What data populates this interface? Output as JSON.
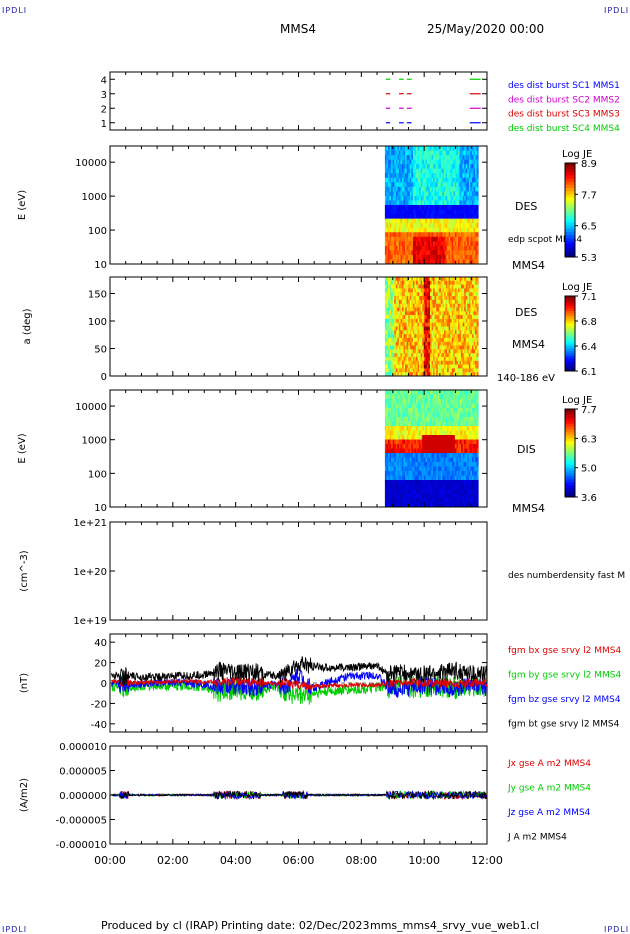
{
  "corner_label": "IPDLI",
  "header": {
    "spacecraft": "MMS4",
    "date": "25/May/2020 00:00"
  },
  "footer": {
    "produced": "Produced by cl (IRAP)",
    "printing": "Printing date: 02/Dec/2023",
    "file": "mms_mms4_srvy_vue_web1.cl"
  },
  "time_axis": {
    "ticks": [
      "00:00",
      "02:00",
      "04:00",
      "06:00",
      "08:00",
      "10:00",
      "12:00"
    ]
  },
  "colors": {
    "mms1": "#0000ff",
    "mms2": "#d000d0",
    "mms3": "#dd0000",
    "mms4": "#00cc00",
    "bx": "#dd0000",
    "by": "#00cc00",
    "bz": "#0000ff",
    "bt": "#000000"
  },
  "chart_data": [
    {
      "type": "scatter",
      "panel": "burst-availability",
      "yticks": [
        "4",
        "3",
        "2",
        "1"
      ],
      "ylim": [
        0.5,
        4.5
      ],
      "series": [
        {
          "name": "des dist burst SC1 MMS1",
          "y": 1,
          "color": "#0000ff",
          "intervals_h": [
            [
              8.78,
              8.92
            ],
            [
              9.2,
              9.35
            ],
            [
              9.45,
              9.6
            ],
            [
              11.45,
              11.8
            ]
          ]
        },
        {
          "name": "des dist burst SC2 MMS2",
          "y": 2,
          "color": "#d000d0",
          "intervals_h": [
            [
              8.78,
              8.92
            ],
            [
              9.2,
              9.35
            ],
            [
              9.45,
              9.6
            ],
            [
              11.45,
              11.8
            ]
          ]
        },
        {
          "name": "des dist burst SC3 MMS3",
          "y": 3,
          "color": "#dd0000",
          "intervals_h": [
            [
              8.78,
              8.92
            ],
            [
              9.2,
              9.35
            ],
            [
              9.45,
              9.6
            ],
            [
              11.45,
              11.8
            ]
          ]
        },
        {
          "name": "des dist burst SC4 MMS4",
          "y": 4,
          "color": "#00cc00",
          "intervals_h": [
            [
              8.78,
              8.92
            ],
            [
              9.2,
              9.35
            ],
            [
              9.45,
              9.6
            ],
            [
              11.45,
              11.8
            ]
          ]
        }
      ]
    },
    {
      "type": "heatmap",
      "panel": "des-energy",
      "ylabel": "E (eV)",
      "yscale": "log",
      "ylim": [
        10,
        30000
      ],
      "yticks": [
        "10000",
        "1000",
        "100",
        "10"
      ],
      "data_start_h": 8.75,
      "data_end_h": 11.72,
      "side_label": "DES",
      "side_note": "edp scpot MMS4",
      "spacecraft": "MMS4",
      "colorbar": {
        "label": "Log JE",
        "ticks": [
          "8.9",
          "7.7",
          "6.5",
          "5.3"
        ],
        "min": 5.3,
        "max": 8.9
      }
    },
    {
      "type": "heatmap",
      "panel": "des-pitch-angle",
      "ylabel": "a (deg)",
      "ylim": [
        0,
        180
      ],
      "yticks": [
        "150",
        "100",
        "50",
        "0"
      ],
      "data_start_h": 8.75,
      "data_end_h": 11.72,
      "side_label": "DES",
      "spacecraft": "MMS4",
      "energy_range": "140-186 eV",
      "colorbar": {
        "label": "Log JE",
        "ticks": [
          "7.1",
          "6.8",
          "6.4",
          "6.1"
        ],
        "min": 6.1,
        "max": 7.1
      }
    },
    {
      "type": "heatmap",
      "panel": "dis-energy",
      "ylabel": "E (eV)",
      "yscale": "log",
      "ylim": [
        10,
        30000
      ],
      "yticks": [
        "10000",
        "1000",
        "100",
        "10"
      ],
      "data_start_h": 8.75,
      "data_end_h": 11.72,
      "side_label": "DIS",
      "spacecraft": "MMS4",
      "colorbar": {
        "label": "Log JE",
        "ticks": [
          "7.7",
          "6.3",
          "5.0",
          "3.6"
        ],
        "min": 3.6,
        "max": 7.7
      }
    },
    {
      "type": "line",
      "panel": "density",
      "ylabel": "(cm^-3)",
      "yscale": "log",
      "yticks": [
        "1e+21",
        "1e+20",
        "1e+19"
      ],
      "series": [
        {
          "name": "des numberdensity fast M",
          "values": []
        }
      ]
    },
    {
      "type": "line",
      "panel": "magnetic-field",
      "ylabel": "(nT)",
      "ylim": [
        -48,
        48
      ],
      "yticks": [
        "40",
        "20",
        "0",
        "-20",
        "-40"
      ],
      "x_hours": [
        0,
        0.4,
        0.8,
        1.5,
        2.5,
        3,
        3.5,
        4,
        4.5,
        4.9,
        5.3,
        5.6,
        6.0,
        6.5,
        7,
        7.5,
        8,
        8.5,
        8.8,
        9.2,
        9.8,
        10.5,
        11,
        11.5,
        12
      ],
      "series": [
        {
          "name": "fgm bx gse srvy l2 MMS4",
          "color": "#dd0000",
          "values": [
            2,
            1,
            0,
            1,
            2,
            1,
            1,
            2,
            1,
            0,
            -1,
            0,
            -2,
            -3,
            -3,
            -2,
            -2,
            -2,
            -1,
            0,
            1,
            0,
            -1,
            1,
            0
          ]
        },
        {
          "name": "fgm by gse srvy l2 MMS4",
          "color": "#00cc00",
          "values": [
            -4,
            -3,
            -3,
            -2,
            -3,
            -4,
            -8,
            -6,
            -8,
            -5,
            -4,
            -8,
            -12,
            -10,
            -8,
            -7,
            -6,
            -5,
            -4,
            -3,
            -4,
            -3,
            -5,
            -4,
            -4
          ]
        },
        {
          "name": "fgm bz gse srvy l2 MMS4",
          "color": "#0000ff",
          "values": [
            -2,
            -1,
            -1,
            0,
            0,
            -1,
            -4,
            -2,
            -5,
            -3,
            -1,
            -4,
            8,
            -6,
            2,
            6,
            7,
            8,
            -3,
            -6,
            -2,
            -4,
            -6,
            -3,
            -4
          ]
        },
        {
          "name": "fgm bt gse srvy l2 MMS4",
          "color": "#000000",
          "values": [
            8,
            7,
            6,
            6,
            7,
            8,
            12,
            9,
            12,
            8,
            7,
            10,
            18,
            16,
            15,
            15,
            16,
            17,
            9,
            10,
            8,
            10,
            12,
            9,
            8
          ]
        }
      ]
    },
    {
      "type": "line",
      "panel": "current-density",
      "ylabel": "(A/m2)",
      "ylim": [
        -1e-05,
        1e-05
      ],
      "yticks": [
        "0.000010",
        "0.000005",
        "0.000000",
        "-0.000005",
        "-0.000010"
      ],
      "series": [
        {
          "name": "Jx gse A m2 MMS4",
          "color": "#dd0000"
        },
        {
          "name": "Jy gse A m2 MMS4",
          "color": "#00cc00"
        },
        {
          "name": "Jz gse A m2 MMS4",
          "color": "#0000ff"
        },
        {
          "name": "J A m2 MMS4",
          "color": "#000000"
        }
      ]
    }
  ]
}
